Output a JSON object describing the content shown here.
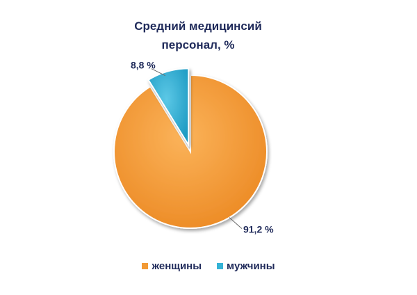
{
  "chart_data": {
    "type": "pie",
    "title": "Средний медицинсий персонал, %",
    "title_lines": [
      "Средний медицинсий",
      "персонал, %"
    ],
    "slices": [
      {
        "name": "женщины",
        "value": 91.2,
        "label": "91,2 %",
        "color": "#f29a35",
        "exploded": false
      },
      {
        "name": "мужчины",
        "value": 8.8,
        "label": "8,8 %",
        "color": "#35b3d6",
        "exploded": true
      }
    ],
    "legend_position": "bottom"
  }
}
